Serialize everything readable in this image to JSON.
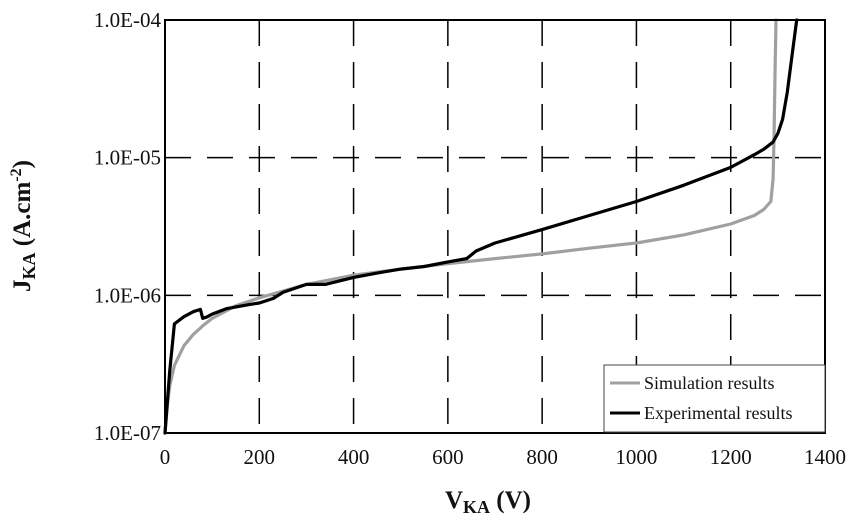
{
  "chart_data": {
    "type": "line",
    "title": "",
    "xlabel": {
      "main": "V",
      "sub": "KA",
      "rest": " (V)"
    },
    "ylabel": {
      "main": "J",
      "sub": "KA",
      "rest": " (A.cm",
      "sup": "-2",
      "close": ")"
    },
    "x_ticks": [
      "0",
      "200",
      "400",
      "600",
      "800",
      "1000",
      "1200",
      "1400"
    ],
    "y_ticks": [
      "1.0E-07",
      "1.0E-06",
      "1.0E-05",
      "1.0E-04"
    ],
    "xlim": [
      0,
      1400
    ],
    "ylim": [
      1e-07,
      0.0001
    ],
    "yscale": "log",
    "grid": "dashed",
    "legend_position": "bottom-right",
    "series": [
      {
        "name": "Simulation results",
        "color": "#a0a0a0",
        "x": [
          0,
          5,
          10,
          20,
          40,
          60,
          80,
          100,
          150,
          200,
          300,
          400,
          500,
          600,
          700,
          800,
          900,
          1000,
          1100,
          1200,
          1250,
          1270,
          1285,
          1290,
          1292,
          1294,
          1296
        ],
        "y": [
          1e-07,
          1.6e-07,
          2.2e-07,
          3.1e-07,
          4.3e-07,
          5.2e-07,
          6e-07,
          6.8e-07,
          8.4e-07,
          9.6e-07,
          1.2e-06,
          1.4e-06,
          1.55e-06,
          1.7e-06,
          1.85e-06,
          2e-06,
          2.2e-06,
          2.4e-06,
          2.75e-06,
          3.3e-06,
          3.8e-06,
          4.2e-06,
          4.8e-06,
          7e-06,
          1.5e-05,
          4e-05,
          0.0001
        ]
      },
      {
        "name": "Experimental results",
        "color": "#000000",
        "x": [
          0,
          10,
          20,
          40,
          60,
          75,
          80,
          90,
          100,
          130,
          180,
          200,
          230,
          250,
          300,
          340,
          400,
          450,
          500,
          550,
          600,
          640,
          660,
          700,
          800,
          900,
          1000,
          1100,
          1200,
          1250,
          1270,
          1290,
          1300,
          1310,
          1320,
          1330,
          1340
        ],
        "y": [
          1e-07,
          2.8e-07,
          6.2e-07,
          7e-07,
          7.6e-07,
          7.9e-07,
          6.8e-07,
          7e-07,
          7.3e-07,
          8e-07,
          8.6e-07,
          8.8e-07,
          9.5e-07,
          1.05e-06,
          1.2e-06,
          1.2e-06,
          1.35e-06,
          1.45e-06,
          1.55e-06,
          1.62e-06,
          1.75e-06,
          1.85e-06,
          2.1e-06,
          2.4e-06,
          3e-06,
          3.8e-06,
          4.8e-06,
          6.3e-06,
          8.5e-06,
          1.05e-05,
          1.15e-05,
          1.3e-05,
          1.5e-05,
          1.9e-05,
          3e-05,
          5.5e-05,
          0.0001
        ]
      }
    ]
  }
}
